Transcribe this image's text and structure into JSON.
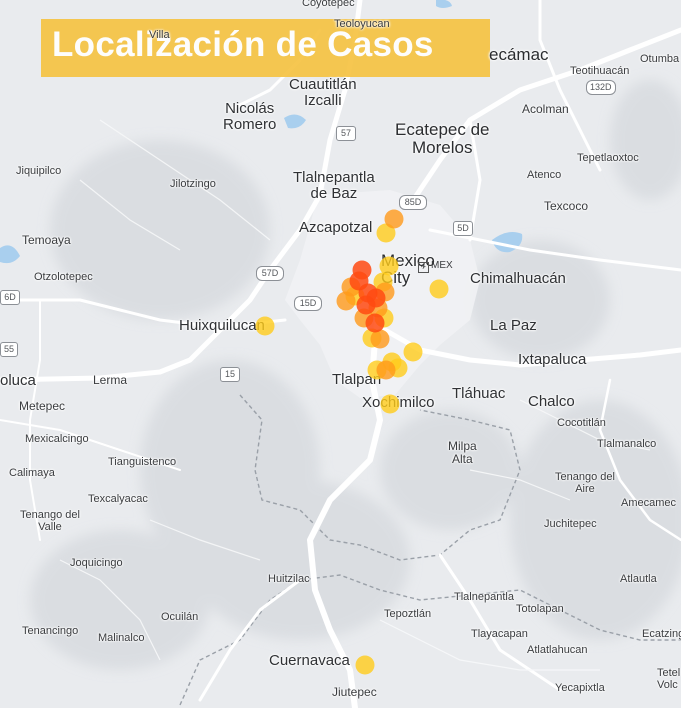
{
  "title": "Localización de Casos",
  "colors": {
    "title_bg": "#f6c343",
    "case_low": "#ffcc1a",
    "case_mid": "#ff9a1a",
    "case_high": "#ff4a12",
    "highway": "#ffffff",
    "water": "#a9cfee",
    "terrain": "#d8dbe0"
  },
  "places": {
    "coyotepec": "Coyotepec",
    "teoloyucan": "Teoloyucan",
    "villa": "Villa",
    "tecamac": "ecámac",
    "otumba": "Otumba",
    "teotihuacan": "Teotihuacán",
    "cuautitlan_izcalli": "Cuautitlán\nIzcalli",
    "nicolas_romero": "Nicolás\nRomero",
    "acolman": "Acolman",
    "ecatepec": "Ecatepec de\nMorelos",
    "tepetlaoxtoc": "Tepetlaoxtoc",
    "jiquipilco": "Jiquipilco",
    "jilotzingo": "Jilotzingo",
    "tlalnepantla": "Tlalnepantla\nde Baz",
    "atenco": "Atenco",
    "texcoco": "Texcoco",
    "temoaya": "Temoaya",
    "azcapotzalco": "Azcapotzal",
    "mexico_city": "Mexico\nCity",
    "chimalhuacan": "Chimalhuacán",
    "otzolotepec": "Otzolotepec",
    "huixquilucan": "Huixquilucan",
    "la_paz": "La Paz",
    "ixtapaluca": "Ixtapaluca",
    "toluca": "oluca",
    "lerma": "Lerma",
    "tlalpan": "Tlalpan",
    "tlahuac": "Tláhuac",
    "metepec": "Metepec",
    "xochimilco": "Xochimilco",
    "chalco": "Chalco",
    "cocotitlan": "Cocotitlán",
    "mexicalcingo": "Mexicalcingo",
    "milpa_alta": "Milpa\nAlta",
    "tlalmanalco": "Tlalmanalco",
    "calimaya": "Calimaya",
    "tianguistenco": "Tianguistenco",
    "tenango_aire": "Tenango del\nAire",
    "texcalyacac": "Texcalyacac",
    "amecameca": "Amecamec",
    "tenango_valle": "Tenango del\nValle",
    "juchitepec": "Juchitepec",
    "joquicingo": "Joquicingo",
    "huitzilac": "Huitzilac",
    "atlautla": "Atlautla",
    "tlalnepantla_mor": "Tlalnepantla",
    "ocuilan": "Ocuilán",
    "tepoztlan": "Tepoztlán",
    "totolapan": "Totolapan",
    "tenancingo": "Tenancingo",
    "malinalco": "Malinalco",
    "tlayacapan": "Tlayacapan",
    "ecatzingo": "Ecatzing",
    "atlatlahucan": "Atlatlahucan",
    "cuernavaca": "Cuernavaca",
    "jiutepec": "Jiutepec",
    "yecapixtla": "Yecapixtla",
    "tetela": "Tetel\nVolc"
  },
  "road_shields": {
    "r132d": "132D",
    "r57_north": "57",
    "r85d": "85D",
    "r5d": "5D",
    "r57d": "57D",
    "r15d": "15D",
    "r6d": "6D",
    "r55": "55",
    "r15": "15",
    "airport": "MEX"
  },
  "cases": [
    {
      "id": 1,
      "level": "mid"
    },
    {
      "id": 2,
      "level": "low"
    },
    {
      "id": 3,
      "level": "low"
    },
    {
      "id": 4,
      "level": "high"
    },
    {
      "id": 5,
      "level": "high"
    },
    {
      "id": 6,
      "level": "high"
    },
    {
      "id": 7,
      "level": "high"
    },
    {
      "id": 8,
      "level": "mid"
    },
    {
      "id": 9,
      "level": "mid"
    },
    {
      "id": 10,
      "level": "high"
    },
    {
      "id": 11,
      "level": "mid"
    },
    {
      "id": 12,
      "level": "mid"
    },
    {
      "id": 13,
      "level": "low"
    },
    {
      "id": 14,
      "level": "mid"
    },
    {
      "id": 15,
      "level": "high"
    },
    {
      "id": 16,
      "level": "mid"
    },
    {
      "id": 17,
      "level": "low"
    },
    {
      "id": 18,
      "level": "low"
    },
    {
      "id": 19,
      "level": "low"
    },
    {
      "id": 20,
      "level": "low"
    },
    {
      "id": 21,
      "level": "mid"
    },
    {
      "id": 22,
      "level": "low"
    },
    {
      "id": 23,
      "level": "low"
    },
    {
      "id": 24,
      "level": "low"
    },
    {
      "id": 25,
      "level": "low"
    },
    {
      "id": 26,
      "level": "low"
    },
    {
      "id": 27,
      "level": "low"
    },
    {
      "id": 28,
      "level": "low"
    }
  ]
}
